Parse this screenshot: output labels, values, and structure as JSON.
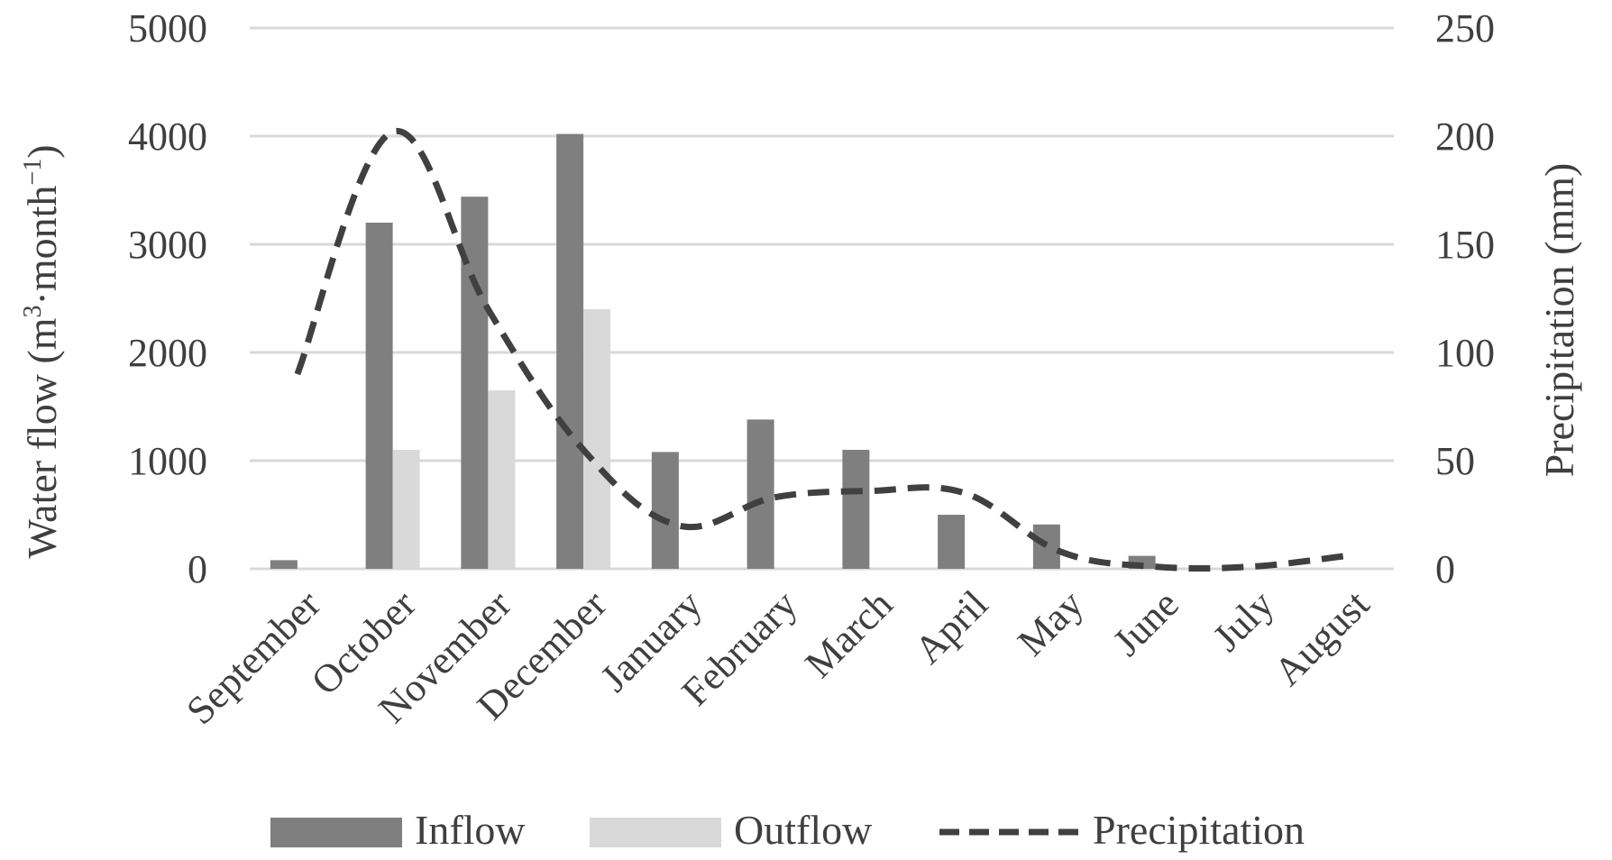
{
  "chart_data": {
    "type": "bar",
    "categories": [
      "September",
      "October",
      "November",
      "December",
      "January",
      "February",
      "March",
      "April",
      "May",
      "June",
      "July",
      "August"
    ],
    "series": [
      {
        "name": "Inflow",
        "type": "bar",
        "axis": "left",
        "color": "#7f7f7f",
        "values": [
          80,
          3200,
          3440,
          4020,
          1080,
          1380,
          1100,
          500,
          410,
          120,
          0,
          0
        ]
      },
      {
        "name": "Outflow",
        "type": "bar",
        "axis": "left",
        "color": "#d9d9d9",
        "values": [
          0,
          1100,
          1650,
          2400,
          0,
          0,
          0,
          0,
          0,
          0,
          0,
          0
        ]
      },
      {
        "name": "Precipitation",
        "type": "line",
        "style": "dashed",
        "axis": "right",
        "color": "#404040",
        "values": [
          90,
          202,
          120,
          55,
          20,
          33,
          36,
          35,
          8,
          1,
          1,
          6
        ]
      }
    ],
    "ylabel": "Water flow (m³·month⁻¹)",
    "ylabel_parts": {
      "base": "Water flow (m",
      "sup1": "3",
      "mid": "·month",
      "sup2": "−1",
      "end": ")"
    },
    "y2label": "Precipitation (mm)",
    "ylim": [
      0,
      5000
    ],
    "y2lim": [
      0,
      250
    ],
    "yticks": [
      "0",
      "1000",
      "2000",
      "3000",
      "4000",
      "5000"
    ],
    "y2ticks": [
      "0",
      "50",
      "100",
      "150",
      "200",
      "250"
    ],
    "grid": true,
    "legend": "bottom",
    "gridColor": "#d9d9d9"
  }
}
